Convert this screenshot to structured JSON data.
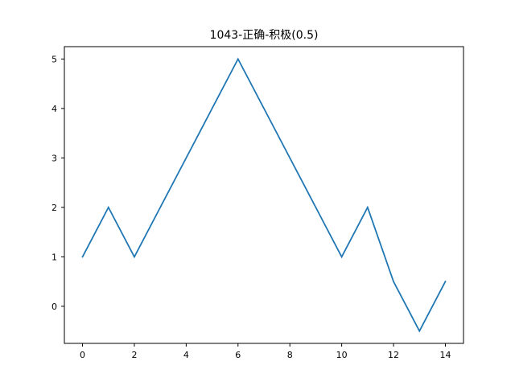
{
  "chart_data": {
    "type": "line",
    "title": "1043-正确-积极(0.5)",
    "xlabel": "",
    "ylabel": "",
    "x": [
      0,
      1,
      2,
      3,
      4,
      5,
      6,
      7,
      8,
      9,
      10,
      11,
      12,
      13,
      14
    ],
    "series": [
      {
        "values": [
          1,
          2,
          1,
          2,
          3,
          4,
          5,
          4,
          3,
          2,
          1,
          2,
          0.5,
          -0.5,
          0.5
        ],
        "color": "#1f77b4"
      }
    ],
    "xlim": [
      -0.7,
      14.7
    ],
    "ylim": [
      -0.75,
      5.25
    ],
    "xticks": [
      0,
      2,
      4,
      6,
      8,
      10,
      12,
      14
    ],
    "yticks": [
      0,
      1,
      2,
      3,
      4,
      5
    ],
    "grid": false,
    "legend": "none"
  }
}
